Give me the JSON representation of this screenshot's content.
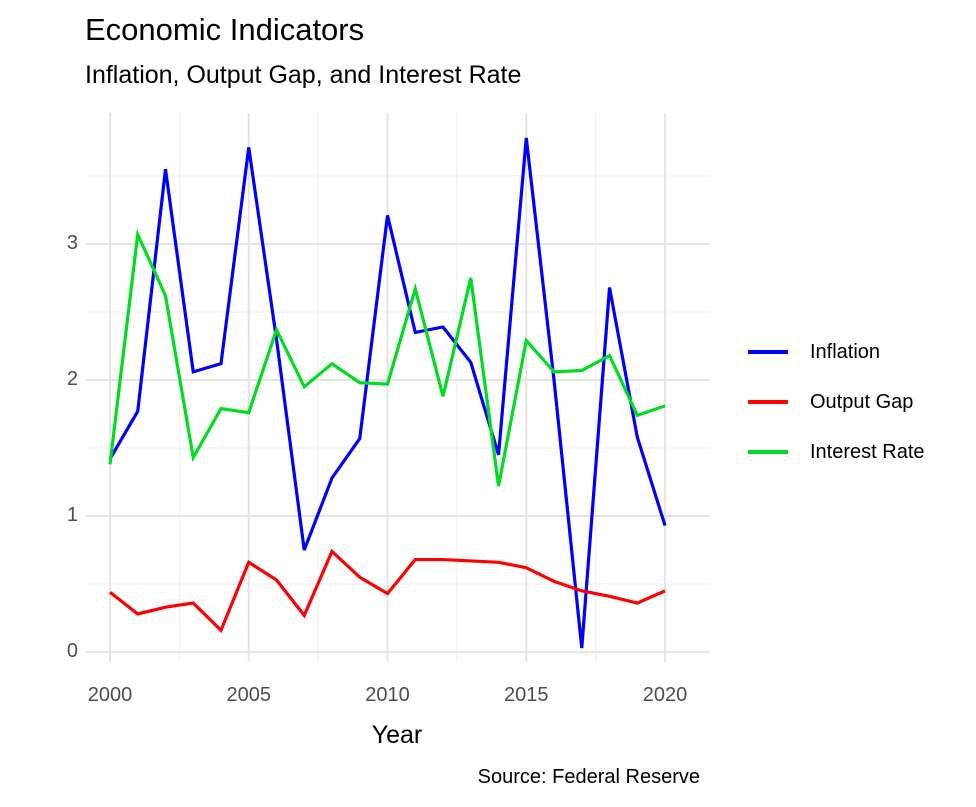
{
  "chart_data": {
    "type": "line",
    "title": "Economic Indicators",
    "subtitle": "Inflation, Output Gap, and Interest Rate",
    "xlabel": "Year",
    "ylabel": "",
    "caption": "Source: Federal Reserve",
    "x": [
      2000,
      2001,
      2002,
      2003,
      2004,
      2005,
      2006,
      2007,
      2008,
      2009,
      2010,
      2011,
      2012,
      2013,
      2014,
      2015,
      2016,
      2017,
      2018,
      2019,
      2020
    ],
    "series": [
      {
        "name": "Inflation",
        "color": "#0000ff",
        "values": [
          1.42,
          1.77,
          3.55,
          2.06,
          2.12,
          3.71,
          2.3,
          0.75,
          1.28,
          1.57,
          3.21,
          2.35,
          2.39,
          2.13,
          1.45,
          3.78,
          2.0,
          0.03,
          2.68,
          1.58,
          0.93
        ]
      },
      {
        "name": "Output Gap",
        "color": "#ff0000",
        "values": [
          0.44,
          0.28,
          0.33,
          0.36,
          0.16,
          0.66,
          0.53,
          0.27,
          0.74,
          0.55,
          0.43,
          0.68,
          0.68,
          0.67,
          0.66,
          0.62,
          0.52,
          0.45,
          0.41,
          0.36,
          0.45
        ]
      },
      {
        "name": "Interest Rate",
        "color": "#00dd20",
        "values": [
          1.38,
          3.07,
          2.62,
          1.43,
          1.79,
          1.76,
          2.37,
          1.95,
          2.12,
          1.98,
          1.97,
          2.67,
          1.88,
          2.75,
          1.22,
          2.29,
          2.06,
          2.07,
          2.18,
          1.74,
          1.81
        ]
      }
    ],
    "xticks": [
      2000,
      2005,
      2010,
      2015,
      2020
    ],
    "yticks": [
      0,
      1,
      2,
      3
    ],
    "xlim": [
      1999.1,
      2021.62
    ],
    "ylim": [
      -0.073,
      3.963
    ],
    "grid": "major+minor",
    "legend_position": "right"
  }
}
